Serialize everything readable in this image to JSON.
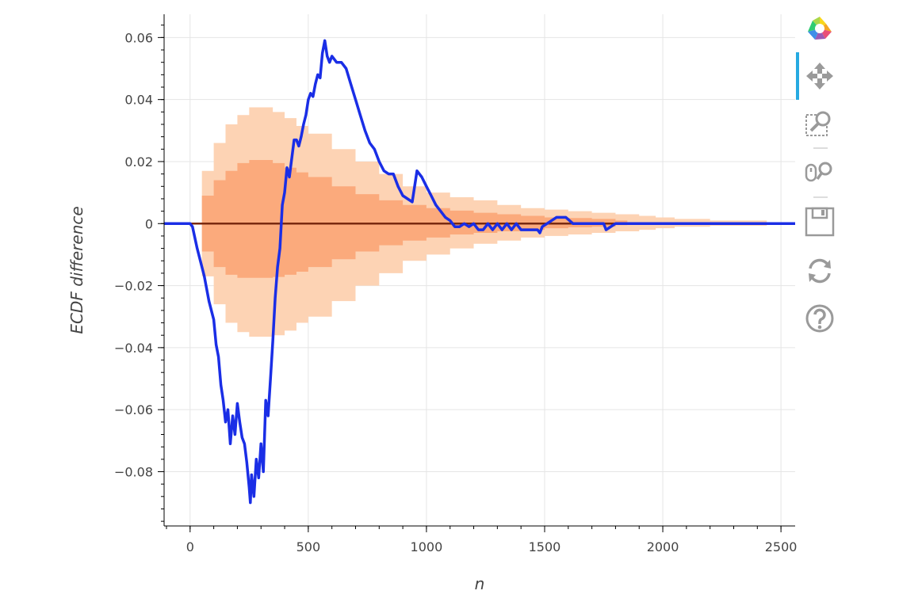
{
  "chart_data": {
    "type": "line",
    "title": "",
    "xlabel": "n",
    "ylabel": "ECDF difference",
    "xlim": [
      -110,
      2560
    ],
    "ylim": [
      -0.0975,
      0.0675
    ],
    "x_ticks": [
      0,
      500,
      1000,
      1500,
      2000,
      2500
    ],
    "y_ticks": [
      -0.08,
      -0.06,
      -0.04,
      -0.02,
      0,
      0.02,
      0.04,
      0.06
    ],
    "y_tick_labels": [
      "−0.08",
      "−0.06",
      "−0.04",
      "−0.02",
      "0",
      "0.02",
      "0.04",
      "0.06"
    ],
    "grid": true,
    "legend": "none",
    "colors": {
      "ecdf_line": "#1a2ee6",
      "outer_band": "#fdd3b4",
      "inner_band": "#fbaa7c",
      "zero_line": "#7a2a10"
    },
    "bands": [
      {
        "name": "outer",
        "x": [
          0,
          50,
          100,
          150,
          200,
          250,
          300,
          350,
          400,
          450,
          500,
          600,
          700,
          800,
          900,
          1000,
          1100,
          1200,
          1300,
          1400,
          1500,
          1600,
          1700,
          1800,
          1900,
          1970,
          2050,
          2200,
          2440
        ],
        "upper": [
          0,
          0.017,
          0.026,
          0.032,
          0.035,
          0.0375,
          0.0375,
          0.036,
          0.034,
          0.0315,
          0.029,
          0.024,
          0.02,
          0.016,
          0.012,
          0.01,
          0.0085,
          0.0075,
          0.006,
          0.005,
          0.0045,
          0.004,
          0.0035,
          0.003,
          0.0025,
          0.002,
          0.0015,
          0.001,
          0.0005
        ],
        "lower": [
          0,
          -0.017,
          -0.026,
          -0.032,
          -0.035,
          -0.0365,
          -0.0365,
          -0.036,
          -0.0345,
          -0.032,
          -0.03,
          -0.025,
          -0.02,
          -0.016,
          -0.012,
          -0.01,
          -0.008,
          -0.0065,
          -0.0055,
          -0.0045,
          -0.004,
          -0.0035,
          -0.003,
          -0.0025,
          -0.002,
          -0.0015,
          -0.001,
          -0.0007,
          -0.0003
        ]
      },
      {
        "name": "inner",
        "x": [
          0,
          50,
          100,
          150,
          200,
          250,
          300,
          350,
          400,
          450,
          500,
          600,
          700,
          800,
          900,
          1000,
          1100,
          1200,
          1300,
          1400,
          1500,
          1600,
          1700,
          1800,
          1850
        ],
        "upper": [
          0,
          0.009,
          0.014,
          0.017,
          0.0195,
          0.0205,
          0.0205,
          0.0195,
          0.018,
          0.0165,
          0.015,
          0.012,
          0.0095,
          0.0075,
          0.006,
          0.005,
          0.0042,
          0.0035,
          0.003,
          0.0025,
          0.002,
          0.0018,
          0.0015,
          0.001,
          0
        ],
        "lower": [
          0,
          -0.009,
          -0.014,
          -0.0165,
          -0.0175,
          -0.0175,
          -0.0175,
          -0.0172,
          -0.0165,
          -0.0155,
          -0.014,
          -0.0115,
          -0.009,
          -0.007,
          -0.0055,
          -0.0045,
          -0.0035,
          -0.003,
          -0.0025,
          -0.002,
          -0.0015,
          -0.0012,
          -0.001,
          -0.0005,
          0
        ]
      }
    ],
    "series": [
      {
        "x": [
          -110,
          0,
          10,
          30,
          60,
          80,
          100,
          110,
          120,
          130,
          140,
          150,
          160,
          170,
          180,
          190,
          200,
          210,
          220,
          230,
          240,
          250,
          255,
          260,
          270,
          280,
          290,
          300,
          310,
          320,
          330,
          340,
          350,
          360,
          370,
          380,
          390,
          400,
          410,
          420,
          430,
          440,
          450,
          460,
          470,
          480,
          490,
          500,
          510,
          520,
          530,
          540,
          550,
          560,
          570,
          580,
          590,
          600,
          620,
          640,
          660,
          680,
          700,
          720,
          740,
          760,
          780,
          800,
          820,
          840,
          860,
          880,
          900,
          920,
          940,
          960,
          980,
          1000,
          1020,
          1040,
          1060,
          1080,
          1100,
          1120,
          1140,
          1160,
          1180,
          1200,
          1220,
          1240,
          1260,
          1280,
          1300,
          1320,
          1340,
          1360,
          1380,
          1400,
          1420,
          1450,
          1470,
          1480,
          1490,
          1510,
          1550,
          1590,
          1620,
          1680,
          1750,
          1760,
          1780,
          1800,
          2000,
          2300,
          2560
        ],
        "y": [
          0,
          0,
          -0.001,
          -0.008,
          -0.017,
          -0.025,
          -0.031,
          -0.039,
          -0.043,
          -0.052,
          -0.057,
          -0.064,
          -0.06,
          -0.071,
          -0.062,
          -0.068,
          -0.058,
          -0.064,
          -0.069,
          -0.071,
          -0.077,
          -0.085,
          -0.09,
          -0.081,
          -0.088,
          -0.076,
          -0.082,
          -0.071,
          -0.08,
          -0.057,
          -0.062,
          -0.05,
          -0.038,
          -0.024,
          -0.014,
          -0.008,
          0.006,
          0.01,
          0.018,
          0.015,
          0.021,
          0.027,
          0.027,
          0.025,
          0.028,
          0.032,
          0.035,
          0.04,
          0.042,
          0.041,
          0.045,
          0.048,
          0.047,
          0.055,
          0.059,
          0.054,
          0.052,
          0.054,
          0.052,
          0.052,
          0.05,
          0.045,
          0.04,
          0.035,
          0.03,
          0.026,
          0.024,
          0.02,
          0.017,
          0.016,
          0.016,
          0.012,
          0.009,
          0.008,
          0.007,
          0.017,
          0.015,
          0.012,
          0.009,
          0.006,
          0.004,
          0.002,
          0.001,
          -0.001,
          -0.001,
          0,
          -0.001,
          0,
          -0.002,
          -0.002,
          0,
          -0.002,
          0,
          -0.002,
          0,
          -0.002,
          0,
          -0.002,
          -0.002,
          -0.002,
          -0.002,
          -0.003,
          -0.001,
          0,
          0.002,
          0.002,
          0,
          0,
          0,
          -0.002,
          -0.001,
          0,
          0,
          0,
          0
        ]
      }
    ]
  },
  "toolbar": {
    "logo": "bokeh-logo-icon",
    "tools": [
      "pan-icon",
      "box-zoom-icon",
      "wheel-zoom-icon",
      "save-icon",
      "reset-icon",
      "help-icon"
    ]
  }
}
